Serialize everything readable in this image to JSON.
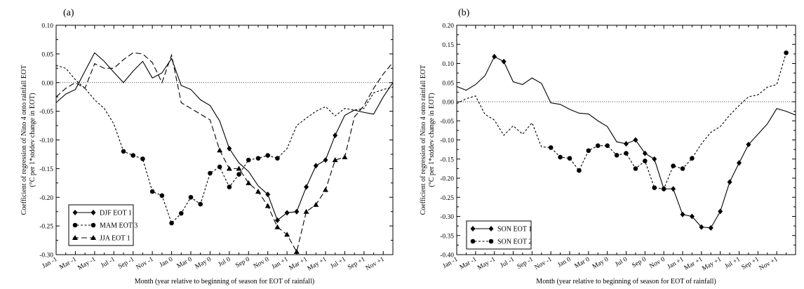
{
  "chart_data": [
    {
      "type": "line",
      "panel_label": "(a)",
      "xlabel": "Month (year relative to beginning of season for EOT of rainfall)",
      "ylabel_line1": "Coefficient of regression of Nino 4 onto rainfall EOT",
      "ylabel_line2": "(°C per 1*stddev change in EOT)",
      "ylim": [
        -0.3,
        0.1
      ],
      "yticks": [
        "0.10",
        "0.05",
        "0.00",
        "-0.05",
        "-0.10",
        "-0.15",
        "-0.20",
        "-0.25",
        "-0.30"
      ],
      "ytick_values": [
        0.1,
        0.05,
        0.0,
        -0.05,
        -0.1,
        -0.15,
        -0.2,
        -0.25,
        -0.3
      ],
      "xticks": [
        "Jan -1",
        "Mar -1",
        "May -1",
        "Jul -1",
        "Sep -1",
        "Nov -1",
        "Jan 0",
        "Mar 0",
        "May 0",
        "Jul 0",
        "Sep 0",
        "Nov 0",
        "Jan +1",
        "Mar +1",
        "May +1",
        "Jul +1",
        "Sep +1",
        "Nov +1"
      ],
      "zero_line": true,
      "legend_position": "bottom-left",
      "series": [
        {
          "name": "DJF EOT 1",
          "line": "solid",
          "marker": "diamond",
          "start_index": 0,
          "values": [
            -0.035,
            -0.02,
            -0.012,
            0.02,
            0.052,
            0.037,
            0.018,
            0.0,
            0.02,
            0.037,
            0.008,
            0.017,
            0.042,
            -0.005,
            -0.012,
            -0.03,
            -0.04,
            -0.067,
            -0.115,
            -0.14,
            -0.155,
            -0.18,
            -0.195,
            -0.24,
            -0.227,
            -0.225,
            -0.182,
            -0.145,
            -0.135,
            -0.092,
            -0.057,
            -0.048,
            -0.052,
            -0.055,
            -0.025,
            0.0
          ],
          "marker_indices": [
            22,
            23,
            24,
            25,
            26,
            27,
            28,
            29
          ],
          "marker_indices_extra": [
            18
          ]
        },
        {
          "name": "MAM EOT 3",
          "line": "short-dash",
          "marker": "circle",
          "start_index": 0,
          "values": [
            0.03,
            0.025,
            0.005,
            -0.01,
            -0.03,
            -0.045,
            -0.072,
            -0.12,
            -0.127,
            -0.133,
            -0.19,
            -0.197,
            -0.245,
            -0.228,
            -0.2,
            -0.212,
            -0.158,
            -0.147,
            -0.182,
            -0.16,
            -0.135,
            -0.132,
            -0.127,
            -0.132,
            -0.115,
            -0.075,
            -0.062,
            -0.05,
            -0.042,
            -0.058,
            -0.045,
            -0.048,
            -0.045,
            -0.018,
            -0.012,
            -0.008
          ],
          "marker_indices": [
            7,
            8,
            9,
            10,
            11,
            12,
            13,
            14,
            15,
            16,
            17,
            18,
            19,
            20,
            21,
            22,
            23
          ]
        },
        {
          "name": "JJA EOT 1",
          "line": "long-dash",
          "marker": "triangle",
          "start_index": 0,
          "values": [
            -0.025,
            -0.01,
            0.0,
            -0.01,
            0.033,
            0.025,
            0.025,
            0.04,
            0.052,
            0.05,
            0.035,
            0.0,
            0.048,
            -0.035,
            -0.045,
            -0.055,
            -0.065,
            -0.118,
            -0.15,
            -0.15,
            -0.175,
            -0.19,
            -0.215,
            -0.252,
            -0.265,
            -0.295,
            -0.225,
            -0.213,
            -0.187,
            -0.135,
            -0.13,
            -0.06,
            -0.04,
            -0.01,
            0.015,
            0.035
          ],
          "marker_indices": [
            17,
            18,
            19,
            20,
            21,
            22,
            23,
            24,
            25,
            26,
            27,
            28,
            29,
            30
          ]
        }
      ]
    },
    {
      "type": "line",
      "panel_label": "(b)",
      "xlabel": "Month (year relative to beginning of season for EOT of rainfall)",
      "ylabel_line1": "Coefficient of regression of Nino 4 onto rainfall EOT",
      "ylabel_line2": "(°C per 1*stddev change in EOT)",
      "ylim": [
        -0.4,
        0.2
      ],
      "yticks": [
        "0.20",
        "0.15",
        "0.10",
        "0.05",
        "0.00",
        "-0.05",
        "-0.10",
        "-0.15",
        "-0.20",
        "-0.25",
        "-0.30",
        "-0.35",
        "-0.40"
      ],
      "ytick_values": [
        0.2,
        0.15,
        0.1,
        0.05,
        0.0,
        -0.05,
        -0.1,
        -0.15,
        -0.2,
        -0.25,
        -0.3,
        -0.35,
        -0.4
      ],
      "xticks": [
        "Jan -1",
        "Mar -1",
        "May -1",
        "Jul -1",
        "Sep -1",
        "Nov -1",
        "Jan 0",
        "Mar 0",
        "May 0",
        "Jul 0",
        "Sep 0",
        "Nov 0",
        "Jan +1",
        "Mar +1",
        "May +1",
        "Jul +1",
        "Sep +1",
        "Nov +1"
      ],
      "zero_line": true,
      "legend_position": "bottom-left",
      "series": [
        {
          "name": "SON EOT 1",
          "line": "solid",
          "marker": "diamond",
          "start_index": 0,
          "values": [
            0.04,
            0.03,
            0.045,
            0.068,
            0.118,
            0.105,
            0.052,
            0.045,
            0.062,
            0.048,
            -0.003,
            -0.007,
            -0.02,
            -0.03,
            -0.032,
            -0.05,
            -0.065,
            -0.105,
            -0.11,
            -0.1,
            -0.135,
            -0.15,
            -0.228,
            -0.228,
            -0.295,
            -0.3,
            -0.328,
            -0.33,
            -0.287,
            -0.21,
            -0.16,
            -0.112,
            -0.085,
            -0.058,
            -0.018,
            -0.025,
            -0.035
          ],
          "marker_indices": [
            4,
            5,
            18,
            19,
            20,
            21,
            22,
            23,
            24,
            25,
            26,
            27,
            28,
            29,
            30,
            31
          ]
        },
        {
          "name": "SON EOT 2",
          "line": "short-dash",
          "marker": "circle",
          "start_index": 0,
          "values": [
            -0.005,
            0.008,
            0.015,
            -0.033,
            -0.048,
            -0.088,
            -0.063,
            -0.085,
            -0.055,
            -0.118,
            -0.12,
            -0.145,
            -0.148,
            -0.18,
            -0.128,
            -0.115,
            -0.115,
            -0.14,
            -0.135,
            -0.175,
            -0.155,
            -0.225,
            -0.228,
            -0.168,
            -0.175,
            -0.148,
            -0.11,
            -0.08,
            -0.065,
            -0.035,
            -0.01,
            0.013,
            0.018,
            0.038,
            0.045,
            0.128
          ],
          "marker_indices": [
            10,
            11,
            12,
            13,
            14,
            15,
            16,
            17,
            18,
            19,
            20,
            21,
            22,
            23,
            24,
            25,
            35
          ]
        }
      ]
    }
  ]
}
